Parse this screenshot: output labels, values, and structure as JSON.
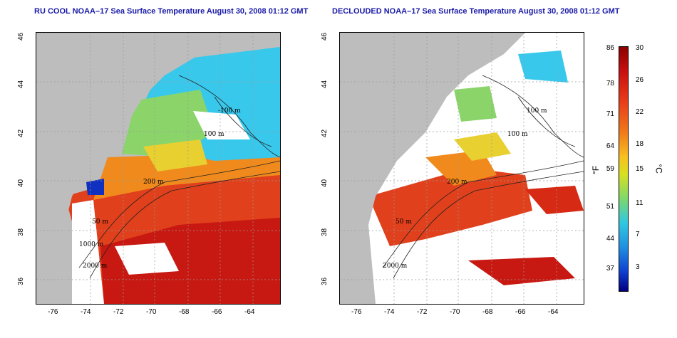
{
  "panels": {
    "left": {
      "title": "RU COOL NOAA–17 Sea Surface Temperature August 30, 2008 01:12 GMT"
    },
    "right": {
      "title": "DECLOUDED NOAA–17 Sea Surface Temperature August 30, 2008 01:12 GMT"
    }
  },
  "axes": {
    "x_ticks": [
      "-76",
      "-74",
      "-72",
      "-70",
      "-68",
      "-66",
      "-64"
    ],
    "y_ticks": [
      "46",
      "44",
      "42",
      "40",
      "38",
      "36"
    ]
  },
  "contour_labels": [
    "-100 m",
    "100 m",
    "200 m",
    "50 m",
    "1000 m",
    "2000 m"
  ],
  "colorbar": {
    "f_ticks": [
      "86",
      "78",
      "71",
      "64",
      "59",
      "51",
      "44",
      "37"
    ],
    "c_ticks": [
      "30",
      "26",
      "22",
      "18",
      "15",
      "11",
      "7",
      "3"
    ],
    "f_unit": "°F",
    "c_unit": "°C"
  },
  "colors": {
    "land": "#bdbdbd",
    "warm": "#d62a14",
    "cool": "#30c8e8",
    "title": "#1a1aa8"
  }
}
